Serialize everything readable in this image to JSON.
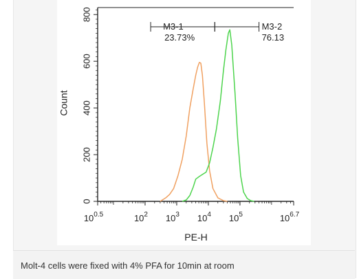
{
  "caption": "Molt-4 cells were fixed with 4% PFA for 10min at room",
  "chart_data": {
    "type": "histogram",
    "title": "",
    "xlabel": "PE-H",
    "ylabel": "Count",
    "x_scale": "log",
    "xlim": [
      3.16,
      5000000
    ],
    "ylim": [
      0,
      830
    ],
    "x_ticks": [
      {
        "value": 3.16,
        "base": "10",
        "exp": "0.5"
      },
      {
        "value": 100,
        "base": "10",
        "exp": "2"
      },
      {
        "value": 1000,
        "base": "10",
        "exp": "3"
      },
      {
        "value": 10000,
        "base": "10",
        "exp": "4"
      },
      {
        "value": 100000,
        "base": "10",
        "exp": "5"
      },
      {
        "value": 5000000,
        "base": "10",
        "exp": "6.7"
      }
    ],
    "y_ticks": [
      0,
      200,
      400,
      600,
      800
    ],
    "gates": [
      {
        "name": "M3-1",
        "percent": "23.73%",
        "range": [
          150,
          16000
        ]
      },
      {
        "name": "M3-2",
        "percent": "76.13",
        "range": [
          16000,
          400000
        ]
      }
    ],
    "series": [
      {
        "color": "#f0a060",
        "points": [
          [
            300,
            0
          ],
          [
            450,
            15
          ],
          [
            600,
            30
          ],
          [
            800,
            55
          ],
          [
            1100,
            110
          ],
          [
            1500,
            180
          ],
          [
            2000,
            280
          ],
          [
            2600,
            400
          ],
          [
            3300,
            480
          ],
          [
            4000,
            540
          ],
          [
            4600,
            575
          ],
          [
            5200,
            595
          ],
          [
            5800,
            592
          ],
          [
            6500,
            540
          ],
          [
            7500,
            420
          ],
          [
            9000,
            250
          ],
          [
            11000,
            130
          ],
          [
            14000,
            55
          ],
          [
            20000,
            15
          ],
          [
            30000,
            3
          ],
          [
            40000,
            0
          ]
        ]
      },
      {
        "color": "#4cd44c",
        "points": [
          [
            1500,
            0
          ],
          [
            2000,
            6
          ],
          [
            2600,
            25
          ],
          [
            3300,
            60
          ],
          [
            4000,
            95
          ],
          [
            5000,
            105
          ],
          [
            6500,
            115
          ],
          [
            8500,
            125
          ],
          [
            11000,
            165
          ],
          [
            14000,
            230
          ],
          [
            18000,
            310
          ],
          [
            24000,
            430
          ],
          [
            30000,
            560
          ],
          [
            36000,
            650
          ],
          [
            43000,
            720
          ],
          [
            48000,
            735
          ],
          [
            55000,
            670
          ],
          [
            70000,
            460
          ],
          [
            85000,
            270
          ],
          [
            105000,
            110
          ],
          [
            130000,
            40
          ],
          [
            170000,
            12
          ],
          [
            220000,
            3
          ],
          [
            280000,
            0
          ]
        ]
      }
    ]
  }
}
